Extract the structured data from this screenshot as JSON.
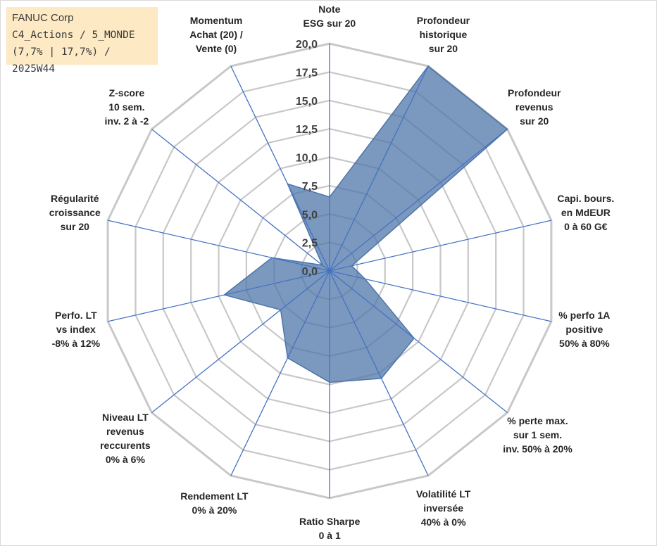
{
  "title_box": {
    "line1": "FANUC Corp",
    "line2": "C4_Actions / 5_MONDE",
    "line3": "(7,7% | 17,7%) / 2025W44"
  },
  "chart_data": {
    "type": "radar",
    "title": "",
    "r_min": 0,
    "r_max": 20,
    "r_step": 2.5,
    "r_tick_labels": [
      "0,0",
      "2,5",
      "5,0",
      "7,5",
      "10,0",
      "12,5",
      "15,0",
      "17,5",
      "20,0"
    ],
    "grid": true,
    "categories": [
      [
        "Note",
        "ESG sur 20"
      ],
      [
        "Profondeur",
        "historique",
        "sur 20"
      ],
      [
        "Profondeur",
        "revenus",
        "sur 20"
      ],
      [
        "Capi. bours.",
        "en MdEUR",
        "0 à 60 G€"
      ],
      [
        "% perfo 1A",
        "positive",
        "50% à 80%"
      ],
      [
        "% perte max.",
        "sur 1 sem.",
        "inv. 50% à 20%"
      ],
      [
        "Volatilité LT",
        "inversée",
        "40% à 0%"
      ],
      [
        "Ratio Sharpe",
        "0 à 1"
      ],
      [
        "Rendement LT",
        "0% à 20%"
      ],
      [
        "Niveau LT",
        "revenus",
        "reccurents",
        "0% à 6%"
      ],
      [
        "Perfo. LT",
        "vs index",
        "-8% à 12%"
      ],
      [
        "Régularité",
        "croissance",
        "sur 20"
      ],
      [
        "Z-score",
        "10 sem.",
        "inv. 2 à -2"
      ],
      [
        "Momentum",
        "Achat (20) /",
        "Vente (0)"
      ]
    ],
    "series": [
      {
        "values": [
          6.5,
          20.0,
          20.0,
          2.0,
          3.2,
          9.5,
          10.5,
          9.8,
          8.5,
          5.5,
          9.5,
          5.2,
          0.8,
          8.5
        ],
        "color": "#4f76a8"
      }
    ]
  }
}
